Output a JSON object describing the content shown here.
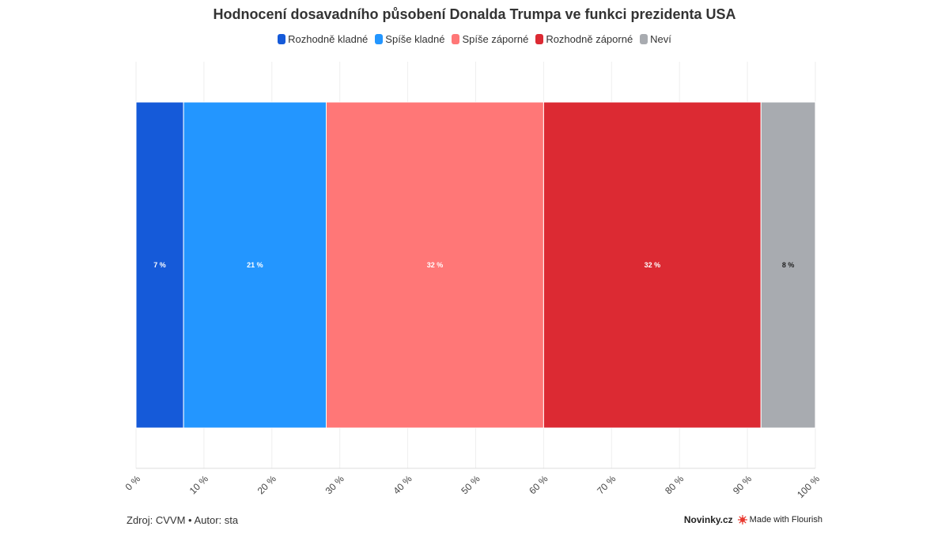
{
  "chart_data": {
    "type": "bar",
    "orientation": "horizontal",
    "stacked": true,
    "title": "Hodnocení dosavadního působení Donalda Trumpa ve funkci prezidenta USA",
    "series": [
      {
        "name": "Rozhodně kladné",
        "value": 7,
        "label": "7 %",
        "color": "#155ad9"
      },
      {
        "name": "Spíše kladné",
        "value": 21,
        "label": "21 %",
        "color": "#2396ff"
      },
      {
        "name": "Spíše záporné",
        "value": 32,
        "label": "32 %",
        "color": "#ff7777"
      },
      {
        "name": "Rozhodně záporné",
        "value": 32,
        "label": "32 %",
        "color": "#dc2a33"
      },
      {
        "name": "Neví",
        "value": 8,
        "label": "8 %",
        "color": "#a8abb0"
      }
    ],
    "xlim": [
      0,
      100
    ],
    "x_ticks": [
      "0 %",
      "10 %",
      "20 %",
      "30 %",
      "40 %",
      "50 %",
      "60 %",
      "70 %",
      "80 %",
      "90 %",
      "100 %"
    ],
    "legend_position": "top-center"
  },
  "footer": {
    "source": "Zdroj: CVVM • Autor: sta",
    "brand": "Novinky.cz",
    "made_with": "Made with Flourish"
  }
}
